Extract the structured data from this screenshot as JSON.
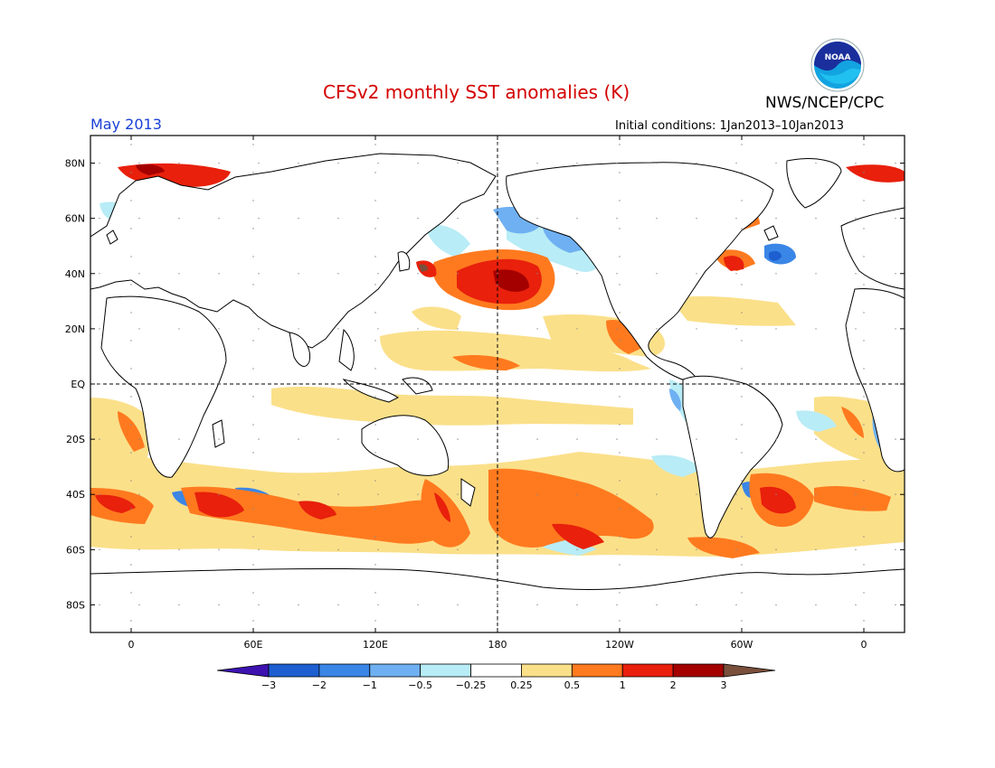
{
  "header": {
    "title": "CFSv2 monthly SST anomalies (K)",
    "org": "NWS/NCEP/CPC",
    "month": "May 2013",
    "initial_conditions": "Initial conditions: 1Jan2013–10Jan2013",
    "logo_text": "NOAA"
  },
  "map": {
    "lon_range": [
      -20,
      380
    ],
    "lat_range": [
      -90,
      90
    ],
    "grid_lon": [
      180
    ],
    "grid_lat": [
      0
    ],
    "lat_ticks": [
      {
        "value": 80,
        "label": "80N"
      },
      {
        "value": 60,
        "label": "60N"
      },
      {
        "value": 40,
        "label": "40N"
      },
      {
        "value": 20,
        "label": "20N"
      },
      {
        "value": 0,
        "label": "EQ"
      },
      {
        "value": -20,
        "label": "20S"
      },
      {
        "value": -40,
        "label": "40S"
      },
      {
        "value": -60,
        "label": "60S"
      },
      {
        "value": -80,
        "label": "80S"
      }
    ],
    "lon_ticks": [
      {
        "value": 0,
        "label": "0"
      },
      {
        "value": 60,
        "label": "60E"
      },
      {
        "value": 120,
        "label": "120E"
      },
      {
        "value": 180,
        "label": "180"
      },
      {
        "value": 240,
        "label": "120W"
      },
      {
        "value": 300,
        "label": "60W"
      },
      {
        "value": 360,
        "label": "0"
      }
    ]
  },
  "colorbar": {
    "labels": [
      "−3",
      "−2",
      "−1",
      "−0.5",
      "−0.25",
      "0.25",
      "0.5",
      "1",
      "2",
      "3"
    ],
    "colors": [
      "#3d12b0",
      "#1d5fd1",
      "#3a86e6",
      "#6fb0f2",
      "#b8ecf6",
      "#ffffff",
      "#fbe08a",
      "#ff7a1f",
      "#e8200c",
      "#a40000",
      "#7a4f3b"
    ]
  }
}
